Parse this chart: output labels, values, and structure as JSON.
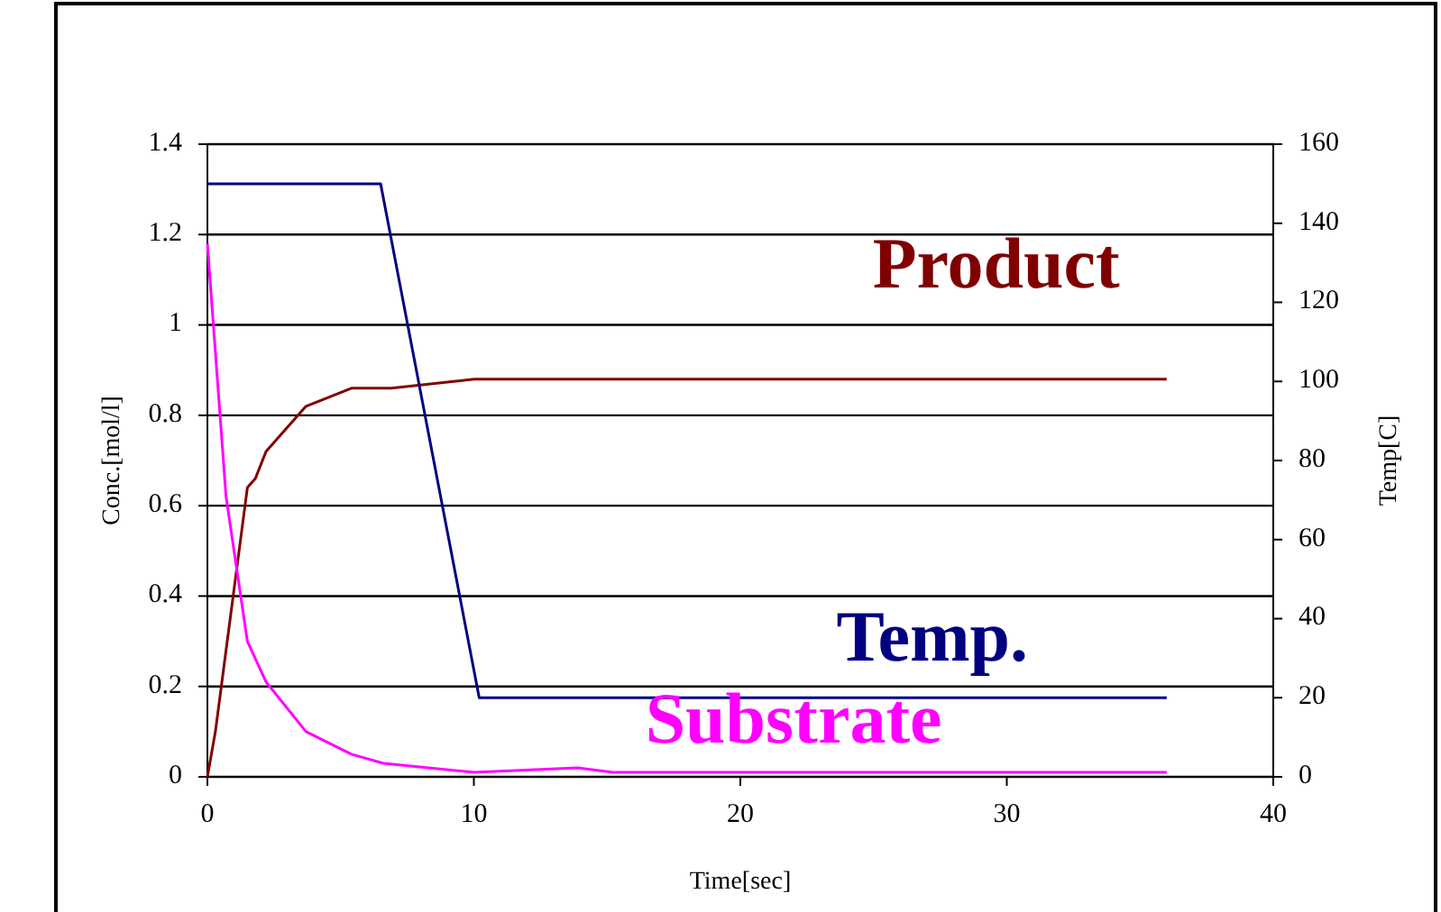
{
  "chart_data": {
    "type": "line",
    "xlabel": "Time[sec]",
    "ylabel": "Conc.[mol/l]",
    "y2label": "Temp[C]",
    "xlim": [
      0,
      40
    ],
    "xticks": [
      0,
      10,
      20,
      30,
      40
    ],
    "ylim": [
      0,
      1.4
    ],
    "yticks": [
      0,
      0.2,
      0.4,
      0.6,
      0.8,
      1,
      1.2,
      1.4
    ],
    "y2lim": [
      0,
      160
    ],
    "y2ticks": [
      0,
      20,
      40,
      60,
      80,
      100,
      120,
      140,
      160
    ],
    "grid": "y",
    "marker": "none",
    "line_style": "solid",
    "series": [
      {
        "name": "Product",
        "color": "#800000",
        "x": [
          0,
          0.3,
          1.5,
          1.8,
          2.2,
          3.7,
          5.4,
          6.9,
          10,
          36
        ],
        "values": [
          0,
          0.1,
          0.64,
          0.66,
          0.72,
          0.82,
          0.86,
          0.86,
          0.88,
          0.88
        ]
      },
      {
        "name": "Temp.",
        "color": "#000080",
        "axis": "y2",
        "x": [
          0,
          6.5,
          10.2,
          36
        ],
        "values": [
          150,
          150,
          20,
          20
        ]
      },
      {
        "name": "Substrate",
        "color": "#ff00ff",
        "x": [
          0,
          0.7,
          1.5,
          2.2,
          3.7,
          5.4,
          6.6,
          10,
          13.9,
          15.2,
          36
        ],
        "values": [
          1.18,
          0.62,
          0.3,
          0.21,
          0.1,
          0.05,
          0.03,
          0.01,
          0.02,
          0.01,
          0.01
        ]
      }
    ]
  }
}
